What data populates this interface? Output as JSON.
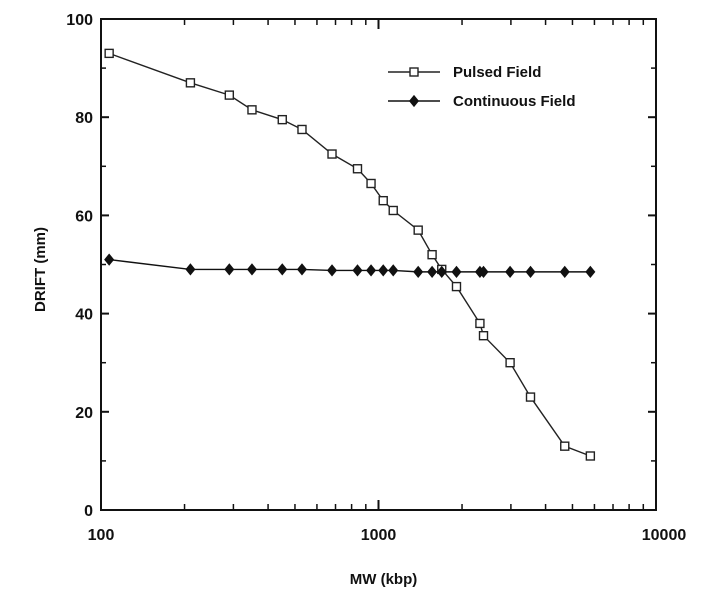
{
  "chart_data": {
    "type": "line",
    "xscale": "log",
    "xlim": [
      100,
      10000
    ],
    "ylim": [
      0,
      100
    ],
    "xlabel": "MW (kbp)",
    "ylabel": "DRIFT (mm)",
    "xticks": [
      "100",
      "1000",
      "10000"
    ],
    "yticks": [
      "0",
      "20",
      "40",
      "60",
      "80",
      "100"
    ],
    "grid": false,
    "legend_position": "top-right",
    "series": [
      {
        "name": "Pulsed Field",
        "marker": "open-square",
        "color": "#222222",
        "x": [
          107,
          210,
          290,
          350,
          450,
          530,
          680,
          840,
          940,
          1040,
          1130,
          1390,
          1560,
          1690,
          1910,
          2320,
          2390,
          2980,
          3530,
          4690,
          5800
        ],
        "y": [
          93,
          87,
          84.5,
          81.5,
          79.5,
          77.5,
          72.5,
          69.5,
          66.5,
          63,
          61,
          57,
          52,
          49,
          45.5,
          38,
          35.5,
          30,
          23,
          13,
          11
        ]
      },
      {
        "name": "Continuous Field",
        "marker": "filled-diamond",
        "color": "#111111",
        "x": [
          107,
          210,
          290,
          350,
          450,
          530,
          680,
          840,
          940,
          1040,
          1130,
          1390,
          1560,
          1690,
          1910,
          2320,
          2390,
          2980,
          3530,
          4690,
          5800
        ],
        "y": [
          51,
          49,
          49,
          49,
          49,
          49,
          48.8,
          48.8,
          48.8,
          48.8,
          48.8,
          48.5,
          48.5,
          48.5,
          48.5,
          48.5,
          48.5,
          48.5,
          48.5,
          48.5,
          48.5
        ]
      }
    ]
  }
}
